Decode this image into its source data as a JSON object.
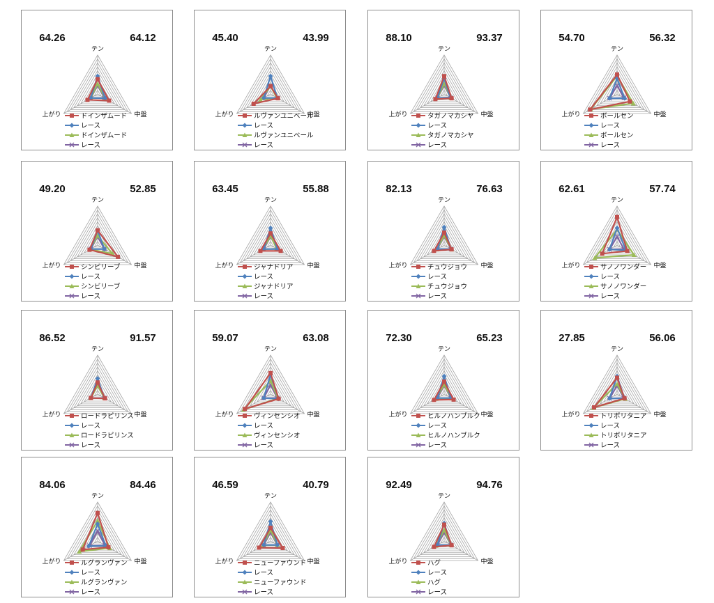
{
  "axes": [
    "テン",
    "中盤",
    "上がり"
  ],
  "scale_max": 100,
  "gridlines": 10,
  "colors": {
    "horse_line": "#c0504d",
    "race_line": "#4f81bd",
    "horse_area": "#9bbb59",
    "race_area": "#8064a2",
    "grid": "#a6a6a6",
    "border": "#8c8c8c"
  },
  "legend_markers": [
    "square-icon",
    "diamond-icon",
    "triangle-icon",
    "x-icon"
  ],
  "chart_data": [
    {
      "type": "radar",
      "score_left": "64.26",
      "score_right": "64.12",
      "series": [
        {
          "name": "ドインザムード",
          "values": [
            38,
            34,
            30
          ]
        },
        {
          "name": "レース",
          "values": [
            46,
            22,
            20
          ]
        },
        {
          "name": "ドインザムード",
          "values": [
            26,
            22,
            20
          ]
        },
        {
          "name": "レース",
          "values": [
            22,
            20,
            20
          ]
        }
      ]
    },
    {
      "type": "radar",
      "score_left": "45.40",
      "score_right": "43.99",
      "series": [
        {
          "name": "ルヴァンユニベール",
          "values": [
            20,
            22,
            50
          ]
        },
        {
          "name": "レース",
          "values": [
            46,
            20,
            20
          ]
        },
        {
          "name": "ルヴァンユニベール",
          "values": [
            20,
            18,
            30
          ]
        },
        {
          "name": "レース",
          "values": [
            22,
            20,
            20
          ]
        }
      ]
    },
    {
      "type": "radar",
      "score_left": "88.10",
      "score_right": "93.37",
      "series": [
        {
          "name": "タガノマカシヤ",
          "values": [
            46,
            22,
            26
          ]
        },
        {
          "name": "レース",
          "values": [
            40,
            18,
            20
          ]
        },
        {
          "name": "タガノマカシヤ",
          "values": [
            26,
            20,
            20
          ]
        },
        {
          "name": "レース",
          "values": [
            22,
            20,
            20
          ]
        }
      ]
    },
    {
      "type": "radar",
      "score_left": "54.70",
      "score_right": "56.32",
      "series": [
        {
          "name": "ボールセン",
          "values": [
            50,
            38,
            80
          ]
        },
        {
          "name": "レース",
          "values": [
            40,
            22,
            22
          ]
        },
        {
          "name": "ボールセン",
          "values": [
            46,
            48,
            78
          ]
        },
        {
          "name": "レース",
          "values": [
            22,
            20,
            22
          ]
        }
      ]
    },
    {
      "type": "radar",
      "score_left": "49.20",
      "score_right": "52.85",
      "series": [
        {
          "name": "シンビリーブ",
          "values": [
            38,
            60,
            24
          ]
        },
        {
          "name": "レース",
          "values": [
            38,
            20,
            20
          ]
        },
        {
          "name": "シンビリーブ",
          "values": [
            24,
            44,
            22
          ]
        },
        {
          "name": "レース",
          "values": [
            22,
            20,
            20
          ]
        }
      ]
    },
    {
      "type": "radar",
      "score_left": "63.45",
      "score_right": "55.88",
      "series": [
        {
          "name": "ジャナドリア",
          "values": [
            30,
            30,
            30
          ]
        },
        {
          "name": "レース",
          "values": [
            44,
            20,
            20
          ]
        },
        {
          "name": "ジャナドリア",
          "values": [
            24,
            18,
            22
          ]
        },
        {
          "name": "レース",
          "values": [
            22,
            20,
            20
          ]
        }
      ]
    },
    {
      "type": "radar",
      "score_left": "82.13",
      "score_right": "76.63",
      "series": [
        {
          "name": "チュウジョウ",
          "values": [
            32,
            22,
            30
          ]
        },
        {
          "name": "レース",
          "values": [
            46,
            20,
            20
          ]
        },
        {
          "name": "チュウジョウ",
          "values": [
            24,
            22,
            22
          ]
        },
        {
          "name": "レース",
          "values": [
            22,
            20,
            20
          ]
        }
      ]
    },
    {
      "type": "radar",
      "score_left": "62.61",
      "score_right": "57.74",
      "series": [
        {
          "name": "サノノワンダー",
          "values": [
            72,
            30,
            44
          ]
        },
        {
          "name": "レース",
          "values": [
            44,
            26,
            22
          ]
        },
        {
          "name": "サノノワンダー",
          "values": [
            40,
            50,
            66
          ]
        },
        {
          "name": "レース",
          "values": [
            22,
            20,
            22
          ]
        }
      ]
    },
    {
      "type": "radar",
      "score_left": "86.52",
      "score_right": "91.57",
      "series": [
        {
          "name": "ロードラピリンス",
          "values": [
            30,
            22,
            20
          ]
        },
        {
          "name": "レース",
          "values": [
            40,
            20,
            20
          ]
        },
        {
          "name": "ロードラピリンス",
          "values": [
            22,
            20,
            20
          ]
        },
        {
          "name": "レース",
          "values": [
            22,
            20,
            20
          ]
        }
      ]
    },
    {
      "type": "radar",
      "score_left": "59.07",
      "score_right": "63.08",
      "series": [
        {
          "name": "ヴィンセンシオ",
          "values": [
            54,
            24,
            76
          ]
        },
        {
          "name": "レース",
          "values": [
            50,
            24,
            20
          ]
        },
        {
          "name": "ヴィンセンシオ",
          "values": [
            34,
            22,
            80
          ]
        },
        {
          "name": "レース",
          "values": [
            24,
            20,
            20
          ]
        }
      ]
    },
    {
      "type": "radar",
      "score_left": "72.30",
      "score_right": "65.23",
      "series": [
        {
          "name": "ヒルノハンブルク",
          "values": [
            32,
            28,
            30
          ]
        },
        {
          "name": "レース",
          "values": [
            46,
            20,
            20
          ]
        },
        {
          "name": "ヒルノハンブルク",
          "values": [
            24,
            22,
            24
          ]
        },
        {
          "name": "レース",
          "values": [
            22,
            20,
            20
          ]
        }
      ]
    },
    {
      "type": "radar",
      "score_left": "27.85",
      "score_right": "56.06",
      "series": [
        {
          "name": "トリポリタニア",
          "values": [
            42,
            22,
            68
          ]
        },
        {
          "name": "レース",
          "values": [
            46,
            22,
            22
          ]
        },
        {
          "name": "トリポリタニア",
          "values": [
            26,
            24,
            70
          ]
        },
        {
          "name": "レース",
          "values": [
            22,
            20,
            22
          ]
        }
      ]
    },
    {
      "type": "radar",
      "score_left": "84.06",
      "score_right": "84.46",
      "series": [
        {
          "name": "ルグランヴァン",
          "values": [
            72,
            32,
            44
          ]
        },
        {
          "name": "レース",
          "values": [
            44,
            24,
            26
          ]
        },
        {
          "name": "ルグランヴァン",
          "values": [
            52,
            36,
            54
          ]
        },
        {
          "name": "レース",
          "values": [
            26,
            22,
            24
          ]
        }
      ]
    },
    {
      "type": "radar",
      "score_left": "46.59",
      "score_right": "40.79",
      "series": [
        {
          "name": "ニューファウンド",
          "values": [
            34,
            36,
            34
          ]
        },
        {
          "name": "レース",
          "values": [
            50,
            20,
            20
          ]
        },
        {
          "name": "ニューファウンド",
          "values": [
            28,
            20,
            22
          ]
        },
        {
          "name": "レース",
          "values": [
            22,
            20,
            20
          ]
        }
      ]
    },
    {
      "type": "radar",
      "score_left": "92.49",
      "score_right": "94.76",
      "series": [
        {
          "name": "ハグ",
          "values": [
            42,
            22,
            30
          ]
        },
        {
          "name": "レース",
          "values": [
            46,
            20,
            20
          ]
        },
        {
          "name": "ハグ",
          "values": [
            28,
            20,
            24
          ]
        },
        {
          "name": "レース",
          "values": [
            22,
            20,
            20
          ]
        }
      ]
    }
  ]
}
